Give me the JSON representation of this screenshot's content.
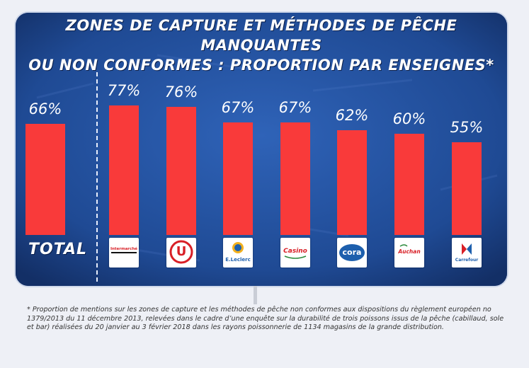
{
  "chart_data": {
    "type": "bar",
    "title": "ZONES DE CAPTURE ET MÉTHODES DE PÊCHE MANQUANTES OU NON CONFORMES : PROPORTION PAR ENSEIGNES*",
    "title_lines": [
      "ZONES DE CAPTURE ET MÉTHODES DE PÊCHE MANQUANTES",
      "OU NON CONFORMES : PROPORTION PAR ENSEIGNES*"
    ],
    "categories": [
      "TOTAL",
      "Intermarché",
      "U",
      "E.Leclerc",
      "Casino",
      "cora",
      "Auchan",
      "Carrefour"
    ],
    "values": [
      66,
      77,
      76,
      67,
      67,
      62,
      60,
      55
    ],
    "value_labels": [
      "66%",
      "77%",
      "76%",
      "67%",
      "67%",
      "62%",
      "60%",
      "55%"
    ],
    "unit": "%",
    "ylim": [
      0,
      100
    ],
    "grid": false,
    "bar_color": "#f93a3a",
    "background_color": "#244f9c"
  },
  "total_label": "TOTAL",
  "logos": [
    {
      "name": "intermarche-logo",
      "text": "Intermarché",
      "color": "#d81f26"
    },
    {
      "name": "systeme-u-logo",
      "text": "U",
      "color": "#d81f26"
    },
    {
      "name": "leclerc-logo",
      "text": "E.Leclerc",
      "color": "#1d5fad"
    },
    {
      "name": "casino-logo",
      "text": "Casino",
      "color": "#d81f26"
    },
    {
      "name": "cora-logo",
      "text": "cora",
      "color": "#1d5fad"
    },
    {
      "name": "auchan-logo",
      "text": "Auchan",
      "color": "#d81f26"
    },
    {
      "name": "carrefour-logo",
      "text": "Carrefour",
      "color": "#1d5fad"
    }
  ],
  "footnote": "* Proportion de mentions sur les zones de capture et les méthodes de pêche non conformes aux dispositions du règlement européen no 1379/2013 du 11 décembre 2013, relevées dans le cadre d’une enquête sur la durabilité de trois poissons issus de la pêche (cabillaud, sole et bar) réalisées du 20 janvier au 3 février 2018 dans les rayons poissonnerie de 1134 magasins de la grande distribution."
}
